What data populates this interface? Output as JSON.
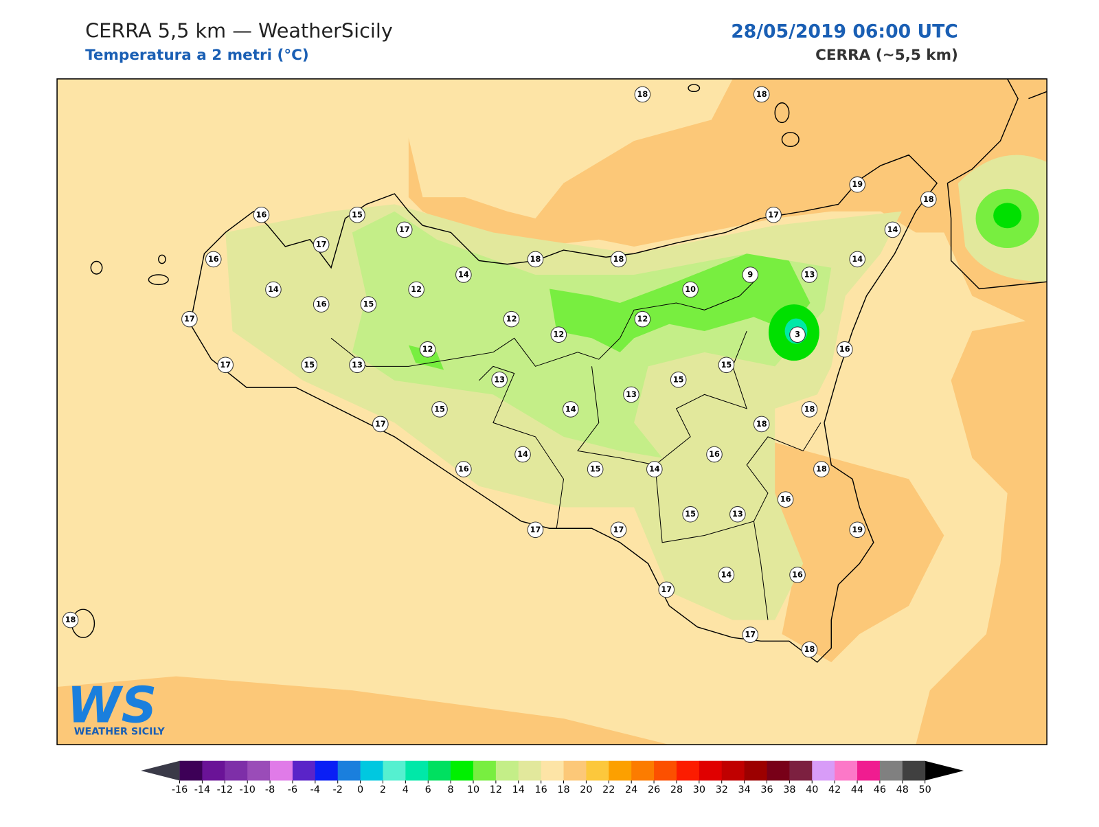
{
  "header": {
    "title": "CERRA 5,5 km — WeatherSicily",
    "subtitle": "Temperatura a 2 metri (°C)",
    "date": "28/05/2019 06:00 UTC",
    "source": "CERRA (~5,5 km)"
  },
  "stations": [
    18,
    18,
    16,
    15,
    17,
    17,
    16,
    14,
    14,
    18,
    18,
    17,
    19,
    18,
    14,
    14,
    9,
    13,
    10,
    12,
    16,
    15,
    17,
    12,
    12,
    12,
    3,
    12,
    16,
    17,
    15,
    13,
    15,
    13,
    15,
    13,
    15,
    14,
    18,
    17,
    18,
    16,
    14,
    16,
    15,
    14,
    18,
    16,
    15,
    13,
    17,
    17,
    19,
    14,
    16,
    17,
    18,
    17,
    18
  ],
  "colorbar": {
    "ticks": [
      -16,
      -14,
      -12,
      -10,
      -8,
      -6,
      -4,
      -2,
      0,
      2,
      4,
      6,
      8,
      10,
      12,
      14,
      16,
      18,
      20,
      22,
      24,
      26,
      28,
      30,
      32,
      34,
      36,
      38,
      40,
      42,
      44,
      46,
      48,
      50
    ],
    "colors": [
      "#3d0057",
      "#6a1397",
      "#7e2fa8",
      "#9a4cb8",
      "#e07be8",
      "#5a24c8",
      "#0a1ff5",
      "#1a7fdd",
      "#00c8e0",
      "#55f0d0",
      "#00e8a8",
      "#00e060",
      "#00f000",
      "#78ee40",
      "#c4ee88",
      "#e2e89c",
      "#fde4a6",
      "#fcc878",
      "#fcc83c",
      "#fca000",
      "#fc7c00",
      "#fc5000",
      "#fc1c00",
      "#e00000",
      "#c00000",
      "#9c0000",
      "#780018",
      "#7c2040",
      "#d89cf8",
      "#fc78c8",
      "#f01c90",
      "#808080",
      "#404040"
    ],
    "under_color": "#3a3a48",
    "over_color": "#000000"
  },
  "logo": {
    "mark": "WS",
    "name": "WEATHER SICILY"
  }
}
